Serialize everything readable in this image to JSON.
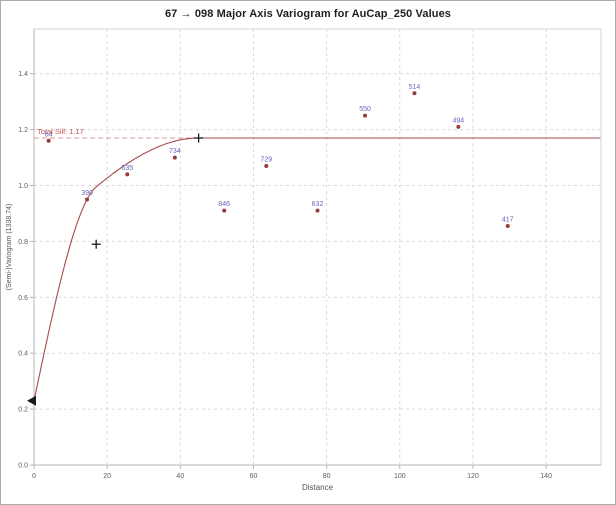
{
  "figure": {
    "background": "#ffffff",
    "border_color": "#ababab"
  },
  "chart_data": {
    "type": "scatter",
    "title": "67 → 098 Major Axis Variogram for AuCap_250 Values",
    "xlabel": "Distance",
    "ylabel": "(Semi-)Variogram (1338.74)",
    "xlim": [
      0,
      155
    ],
    "ylim": [
      0,
      1.56
    ],
    "x_ticks": [
      0,
      20,
      40,
      60,
      80,
      100,
      120,
      140
    ],
    "y_ticks": [
      0,
      0.2,
      0.4,
      0.6,
      0.8,
      1.0,
      1.2,
      1.4
    ],
    "grid": true,
    "legend": false,
    "sill": {
      "value": 1.17,
      "label": "Total Sill: 1.17"
    },
    "model": {
      "kind": "spherical",
      "nugget": 0.23,
      "structures": [
        {
          "partial_sill": 0.56,
          "range": 17
        },
        {
          "partial_sill": 0.38,
          "range": 45
        }
      ]
    },
    "handles": {
      "nugget": {
        "x": 0,
        "y": 0.23,
        "shape": "left-triangle"
      },
      "structure1": {
        "x": 17,
        "y": 0.79,
        "shape": "cross"
      },
      "structure2": {
        "x": 45,
        "y": 1.17,
        "shape": "cross"
      }
    },
    "points": [
      {
        "x": 4,
        "y": 1.16,
        "label": "64"
      },
      {
        "x": 14.5,
        "y": 0.95,
        "label": "390"
      },
      {
        "x": 25.5,
        "y": 1.04,
        "label": "635"
      },
      {
        "x": 38.5,
        "y": 1.1,
        "label": "734"
      },
      {
        "x": 52,
        "y": 0.91,
        "label": "846"
      },
      {
        "x": 63.5,
        "y": 1.07,
        "label": "729"
      },
      {
        "x": 77.5,
        "y": 0.91,
        "label": "632"
      },
      {
        "x": 90.5,
        "y": 1.25,
        "label": "550"
      },
      {
        "x": 104,
        "y": 1.33,
        "label": "514"
      },
      {
        "x": 116,
        "y": 1.21,
        "label": "494"
      },
      {
        "x": 129.5,
        "y": 0.855,
        "label": "417"
      }
    ],
    "colors": {
      "point": "#993a3a",
      "point_label": "#6565bb",
      "curve": "#a84a4a",
      "sill_line": "#dc9a9a",
      "sill_text": "#c25555",
      "handle": "#1a1a1a",
      "grid": "#d9d9d9",
      "axis": "#b5b5b5",
      "plot_border": "#d4d4d4",
      "tick_text": "#606060",
      "axis_label_text": "#555555"
    }
  }
}
